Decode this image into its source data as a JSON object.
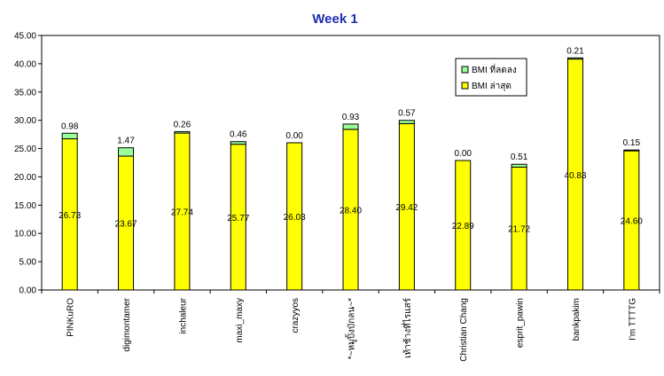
{
  "chart_data": {
    "type": "bar",
    "stacked": true,
    "title": "Week 1",
    "xlabel": "",
    "ylabel": "",
    "ylim": [
      0,
      45
    ],
    "yticks": [
      "0.00",
      "5.00",
      "10.00",
      "15.00",
      "20.00",
      "25.00",
      "30.00",
      "35.00",
      "40.00",
      "45.00"
    ],
    "grid": false,
    "legend_position": "top-right",
    "categories": [
      "PINKuRO",
      "digimontamer",
      "inchaleur",
      "maxi_maxy",
      "crazyyos",
      "*~หมูปิ้งบักลน~*",
      "เท้าช้างที่ไรแสร์",
      "Christian Chang",
      "esprit_pawin",
      "bankpakim",
      "I'm TTTTG"
    ],
    "series": [
      {
        "name": "BMI ล่าสุด",
        "color": "#ffff00",
        "values": [
          26.73,
          23.67,
          27.74,
          25.77,
          26.03,
          28.4,
          29.42,
          22.89,
          21.72,
          40.83,
          24.6
        ],
        "labels": [
          "26.73",
          "23.67",
          "27.74",
          "25.77",
          "26.03",
          "28.40",
          "29.42",
          "22.89",
          "21.72",
          "40.83",
          "24.60"
        ]
      },
      {
        "name": "BMI ที่ลดลง",
        "color": "#99ff99",
        "values": [
          0.98,
          1.47,
          0.26,
          0.46,
          0.0,
          0.93,
          0.57,
          0.0,
          0.51,
          0.21,
          0.15
        ],
        "labels": [
          "0.98",
          "1.47",
          "0.26",
          "0.46",
          "0.00",
          "0.93",
          "0.57",
          "0.00",
          "0.51",
          "0.21",
          "0.15"
        ]
      }
    ]
  }
}
